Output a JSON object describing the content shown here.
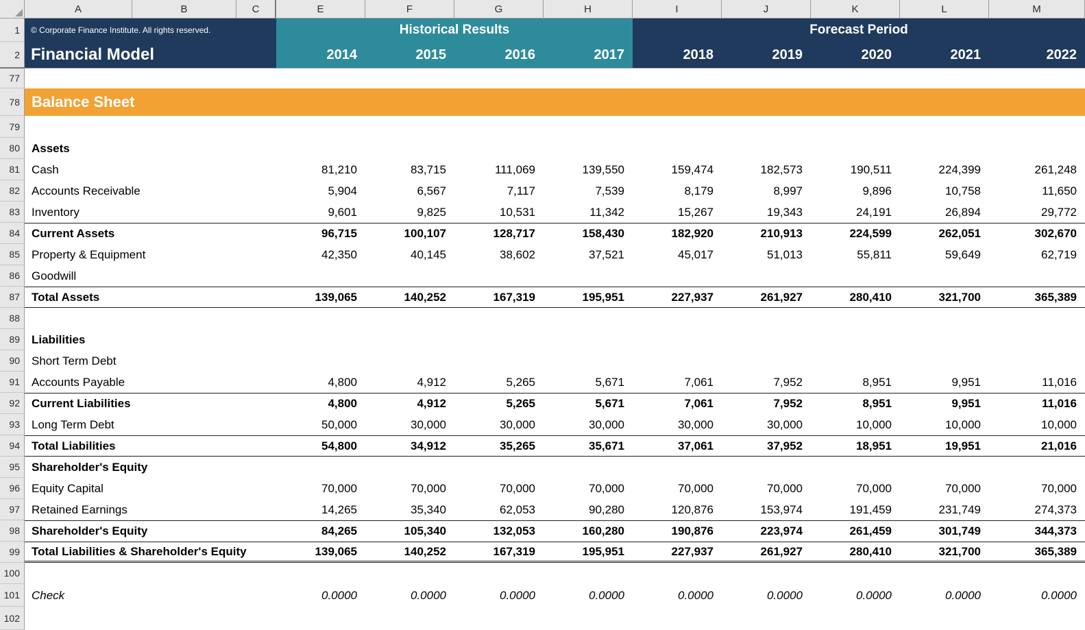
{
  "colors": {
    "navy": "#1F3A5C",
    "teal": "#2E8B9C",
    "orange": "#F1A233",
    "gray": "#E7E7E7",
    "grid": "#9B9B9B",
    "ink": "#1F1F1F"
  },
  "grid": {
    "column_headers": [
      "A",
      "B",
      "C",
      "E",
      "F",
      "G",
      "H",
      "I",
      "J",
      "K",
      "L",
      "M"
    ]
  },
  "header": {
    "row1_num": "1",
    "row2_num": "2",
    "copyright": "© Corporate Finance Institute. All rights reserved.",
    "title": "Financial Model",
    "historical_label": "Historical Results",
    "forecast_label": "Forecast Period",
    "years": [
      "2014",
      "2015",
      "2016",
      "2017",
      "2018",
      "2019",
      "2020",
      "2021",
      "2022"
    ]
  },
  "sheet": {
    "section_title": "Balance Sheet",
    "rows": [
      {
        "n": "77",
        "type": "blank"
      },
      {
        "n": "78",
        "type": "banner",
        "label": "Balance Sheet"
      },
      {
        "n": "79",
        "type": "blank"
      },
      {
        "n": "80",
        "type": "heading",
        "label": "Assets"
      },
      {
        "n": "81",
        "type": "data",
        "label": "Cash",
        "values": [
          "81,210",
          "83,715",
          "111,069",
          "139,550",
          "159,474",
          "182,573",
          "190,511",
          "224,399",
          "261,248"
        ]
      },
      {
        "n": "82",
        "type": "data",
        "label": "Accounts Receivable",
        "values": [
          "5,904",
          "6,567",
          "7,117",
          "7,539",
          "8,179",
          "8,997",
          "9,896",
          "10,758",
          "11,650"
        ]
      },
      {
        "n": "83",
        "type": "data",
        "label": "Inventory",
        "values": [
          "9,601",
          "9,825",
          "10,531",
          "11,342",
          "15,267",
          "19,343",
          "24,191",
          "26,894",
          "29,772"
        ]
      },
      {
        "n": "84",
        "type": "bold",
        "border": "top",
        "label": "Current Assets",
        "values": [
          "96,715",
          "100,107",
          "128,717",
          "158,430",
          "182,920",
          "210,913",
          "224,599",
          "262,051",
          "302,670"
        ]
      },
      {
        "n": "85",
        "type": "data",
        "label": "Property & Equipment",
        "values": [
          "42,350",
          "40,145",
          "38,602",
          "37,521",
          "45,017",
          "51,013",
          "55,811",
          "59,649",
          "62,719"
        ]
      },
      {
        "n": "86",
        "type": "data",
        "label": "Goodwill",
        "values": [
          "",
          "",
          "",
          "",
          "",
          "",
          "",
          "",
          ""
        ]
      },
      {
        "n": "87",
        "type": "bold",
        "border": "top bottom",
        "label": "Total Assets",
        "values": [
          "139,065",
          "140,252",
          "167,319",
          "195,951",
          "227,937",
          "261,927",
          "280,410",
          "321,700",
          "365,389"
        ]
      },
      {
        "n": "88",
        "type": "blank"
      },
      {
        "n": "89",
        "type": "heading",
        "label": "Liabilities"
      },
      {
        "n": "90",
        "type": "data",
        "label": "Short Term Debt",
        "values": [
          "",
          "",
          "",
          "",
          "",
          "",
          "",
          "",
          ""
        ]
      },
      {
        "n": "91",
        "type": "data",
        "label": "Accounts Payable",
        "values": [
          "4,800",
          "4,912",
          "5,265",
          "5,671",
          "7,061",
          "7,952",
          "8,951",
          "9,951",
          "11,016"
        ]
      },
      {
        "n": "92",
        "type": "bold",
        "border": "top",
        "label": "Current Liabilities",
        "values": [
          "4,800",
          "4,912",
          "5,265",
          "5,671",
          "7,061",
          "7,952",
          "8,951",
          "9,951",
          "11,016"
        ]
      },
      {
        "n": "93",
        "type": "data",
        "label": "Long Term Debt",
        "values": [
          "50,000",
          "30,000",
          "30,000",
          "30,000",
          "30,000",
          "30,000",
          "10,000",
          "10,000",
          "10,000"
        ]
      },
      {
        "n": "94",
        "type": "bold",
        "border": "top bottom",
        "label": "Total Liabilities",
        "values": [
          "54,800",
          "34,912",
          "35,265",
          "35,671",
          "37,061",
          "37,952",
          "18,951",
          "19,951",
          "21,016"
        ]
      },
      {
        "n": "95",
        "type": "heading",
        "label": "Shareholder's Equity"
      },
      {
        "n": "96",
        "type": "data",
        "label": "Equity Capital",
        "values": [
          "70,000",
          "70,000",
          "70,000",
          "70,000",
          "70,000",
          "70,000",
          "70,000",
          "70,000",
          "70,000"
        ]
      },
      {
        "n": "97",
        "type": "data",
        "label": "Retained Earnings",
        "values": [
          "14,265",
          "35,340",
          "62,053",
          "90,280",
          "120,876",
          "153,974",
          "191,459",
          "231,749",
          "274,373"
        ]
      },
      {
        "n": "98",
        "type": "bold",
        "border": "top",
        "label": "Shareholder's Equity",
        "values": [
          "84,265",
          "105,340",
          "132,053",
          "160,280",
          "190,876",
          "223,974",
          "261,459",
          "301,749",
          "344,373"
        ]
      },
      {
        "n": "99",
        "type": "bold",
        "border": "top dbottom",
        "label": "Total Liabilities & Shareholder's Equity",
        "values": [
          "139,065",
          "140,252",
          "167,319",
          "195,951",
          "227,937",
          "261,927",
          "280,410",
          "321,700",
          "365,389"
        ]
      },
      {
        "n": "100",
        "type": "blank"
      },
      {
        "n": "101",
        "type": "check",
        "label": "Check",
        "values": [
          "0.0000",
          "0.0000",
          "0.0000",
          "0.0000",
          "0.0000",
          "0.0000",
          "0.0000",
          "0.0000",
          "0.0000"
        ]
      },
      {
        "n": "102",
        "type": "blank"
      }
    ]
  }
}
